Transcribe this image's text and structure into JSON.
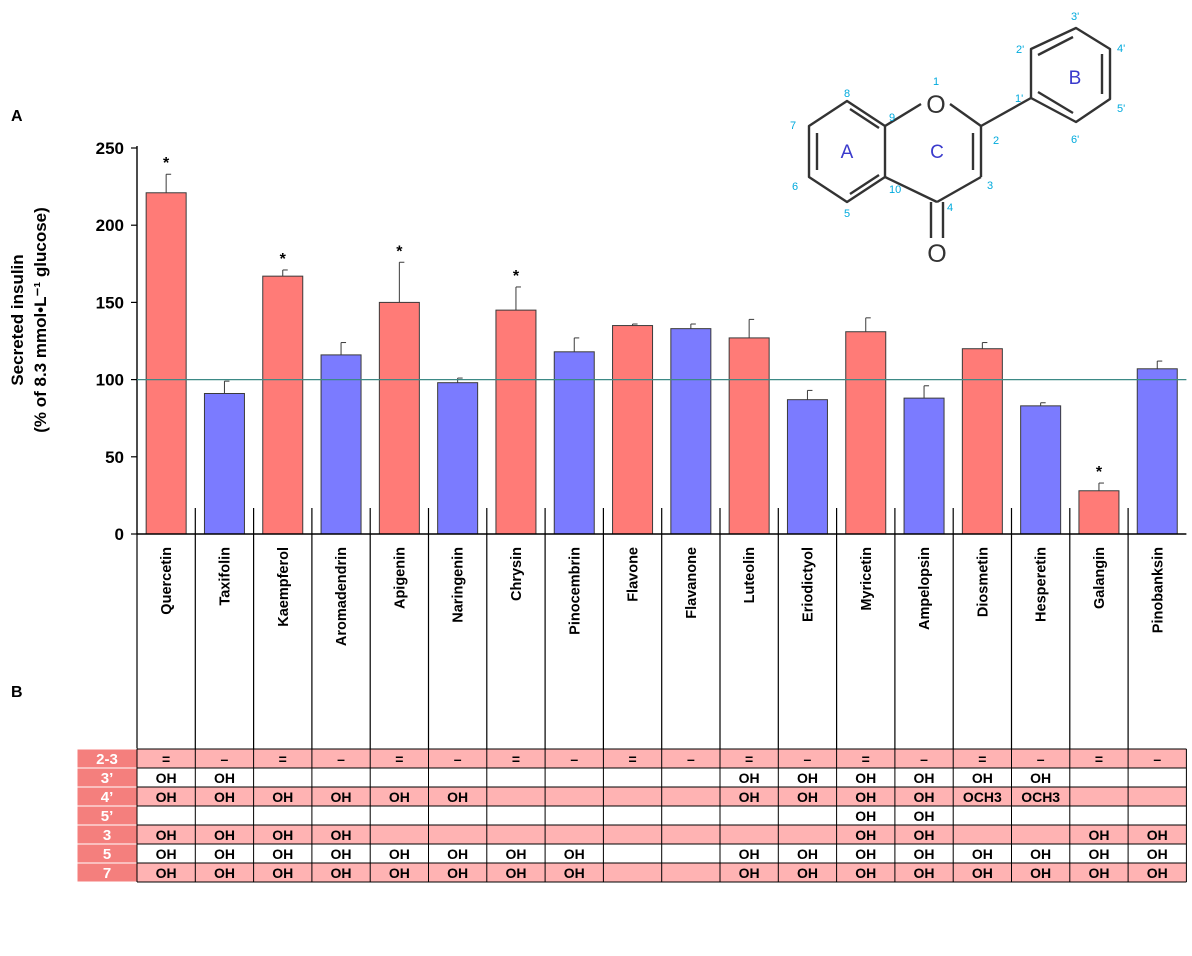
{
  "panels": {
    "a": "A",
    "b": "B"
  },
  "colors": {
    "red": "#ff7b77",
    "blue": "#7b7bff",
    "row_odd": "#ffb3b3",
    "row_head": "#f47f7d",
    "baseline": "#3d8a86"
  },
  "chart_data": {
    "type": "bar",
    "ylabel_line1": "Secreted insulin",
    "ylabel_line2": "(% of 8.3 mmol•L⁻¹ glucose)",
    "ylim": [
      0,
      250
    ],
    "yticks": [
      0,
      50,
      100,
      150,
      200,
      250
    ],
    "reference_line": 100,
    "categories": [
      "Quercetin",
      "Taxifolin",
      "Kaempferol",
      "Aromadendrin",
      "Apigenin",
      "Naringenin",
      "Chrysin",
      "Pinocembrin",
      "Flavone",
      "Flavanone",
      "Luteolin",
      "Eriodictyol",
      "Myricetin",
      "Ampelopsin",
      "Diosmetin",
      "Hesperetin",
      "Galangin",
      "Pinobanksin"
    ],
    "values": [
      221,
      91,
      167,
      116,
      150,
      98,
      145,
      118,
      135,
      133,
      127,
      87,
      131,
      88,
      120,
      83,
      28,
      107
    ],
    "errors": [
      12,
      8,
      4,
      8,
      26,
      3,
      15,
      9,
      1,
      3,
      12,
      6,
      9,
      8,
      4,
      2,
      5,
      5
    ],
    "significant": [
      true,
      false,
      true,
      false,
      true,
      false,
      true,
      false,
      false,
      false,
      false,
      false,
      false,
      false,
      false,
      false,
      true,
      false
    ],
    "significance_mark": "*",
    "bar_colors": [
      "red",
      "blue",
      "red",
      "blue",
      "red",
      "blue",
      "red",
      "blue",
      "red",
      "blue",
      "red",
      "blue",
      "red",
      "blue",
      "red",
      "blue",
      "red",
      "blue"
    ]
  },
  "table": {
    "rows": [
      {
        "label": "2-3",
        "cells": [
          "=",
          "–",
          "=",
          "–",
          "=",
          "–",
          "=",
          "–",
          "=",
          "–",
          "=",
          "–",
          "=",
          "–",
          "=",
          "–",
          "=",
          "–"
        ]
      },
      {
        "label": "3’",
        "cells": [
          "OH",
          "OH",
          "",
          "",
          "",
          "",
          "",
          "",
          "",
          "",
          "OH",
          "OH",
          "OH",
          "OH",
          "OH",
          "OH",
          "",
          ""
        ]
      },
      {
        "label": "4’",
        "cells": [
          "OH",
          "OH",
          "OH",
          "OH",
          "OH",
          "OH",
          "",
          "",
          "",
          "",
          "OH",
          "OH",
          "OH",
          "OH",
          "OCH3",
          "OCH3",
          "",
          ""
        ]
      },
      {
        "label": "5’",
        "cells": [
          "",
          "",
          "",
          "",
          "",
          "",
          "",
          "",
          "",
          "",
          "",
          "",
          "OH",
          "OH",
          "",
          "",
          "",
          ""
        ]
      },
      {
        "label": "3",
        "cells": [
          "OH",
          "OH",
          "OH",
          "OH",
          "",
          "",
          "",
          "",
          "",
          "",
          "",
          "",
          "OH",
          "OH",
          "",
          "",
          "OH",
          "OH"
        ]
      },
      {
        "label": "5",
        "cells": [
          "OH",
          "OH",
          "OH",
          "OH",
          "OH",
          "OH",
          "OH",
          "OH",
          "",
          "",
          "OH",
          "OH",
          "OH",
          "OH",
          "OH",
          "OH",
          "OH",
          "OH"
        ]
      },
      {
        "label": "7",
        "cells": [
          "OH",
          "OH",
          "OH",
          "OH",
          "OH",
          "OH",
          "OH",
          "OH",
          "",
          "",
          "OH",
          "OH",
          "OH",
          "OH",
          "OH",
          "OH",
          "OH",
          "OH"
        ]
      }
    ]
  },
  "structure": {
    "ring_labels": [
      "A",
      "C",
      "B"
    ],
    "atoms": [
      "O",
      "O"
    ],
    "position_numbers": [
      "1",
      "2",
      "3",
      "4",
      "5",
      "6",
      "7",
      "8",
      "9",
      "10",
      "1'",
      "2'",
      "3'",
      "4'",
      "5'",
      "6'"
    ]
  }
}
